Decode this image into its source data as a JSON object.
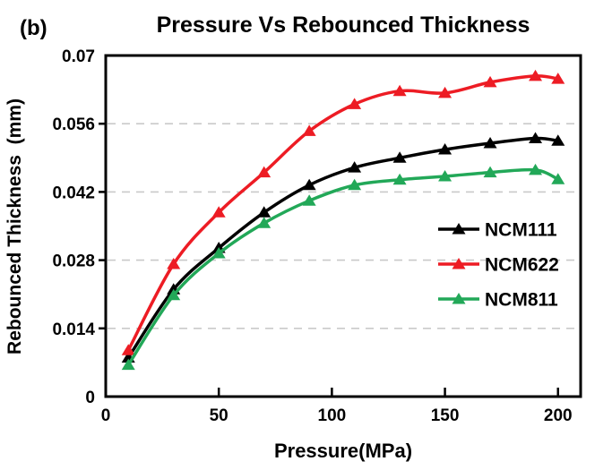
{
  "figure": {
    "panel_label": "(b)",
    "background_color": "#ffffff"
  },
  "chart_data": {
    "type": "line",
    "title": "Pressure Vs Rebounced Thickness",
    "xlabel": "Pressure(MPa)",
    "ylabel": "Rebounced Thickness  (mm)",
    "xlim": [
      0,
      210
    ],
    "ylim": [
      0,
      0.07
    ],
    "x_ticks": [
      0,
      50,
      100,
      150,
      200
    ],
    "x_tick_labels": [
      "0",
      "50",
      "100",
      "150",
      "200"
    ],
    "y_ticks": [
      0,
      0.014,
      0.028,
      0.042,
      0.056,
      0.07
    ],
    "y_tick_labels": [
      "0",
      "0.014",
      "0.028",
      "0.042",
      "0.056",
      "0.07"
    ],
    "grid": "horizontal-dashed",
    "legend_position": "inside-right",
    "marker": "triangle-up",
    "x": [
      10,
      30,
      50,
      70,
      90,
      110,
      130,
      150,
      170,
      190,
      200
    ],
    "series": [
      {
        "name": "NCM111",
        "color": "#000000",
        "values": [
          0.008,
          0.022,
          0.0305,
          0.0378,
          0.0434,
          0.047,
          0.049,
          0.0507,
          0.052,
          0.053,
          0.0525
        ]
      },
      {
        "name": "NCM622",
        "color": "#ed1c24",
        "values": [
          0.0095,
          0.0272,
          0.0378,
          0.046,
          0.0545,
          0.06,
          0.0627,
          0.0623,
          0.0645,
          0.0658,
          0.0652
        ]
      },
      {
        "name": "NCM811",
        "color": "#22a858",
        "values": [
          0.0065,
          0.0208,
          0.0294,
          0.0356,
          0.0402,
          0.0434,
          0.0445,
          0.0452,
          0.046,
          0.0465,
          0.0446
        ]
      }
    ],
    "colors": {
      "axis": "#000000",
      "grid": "#c9c9c9",
      "text": "#000000"
    }
  }
}
